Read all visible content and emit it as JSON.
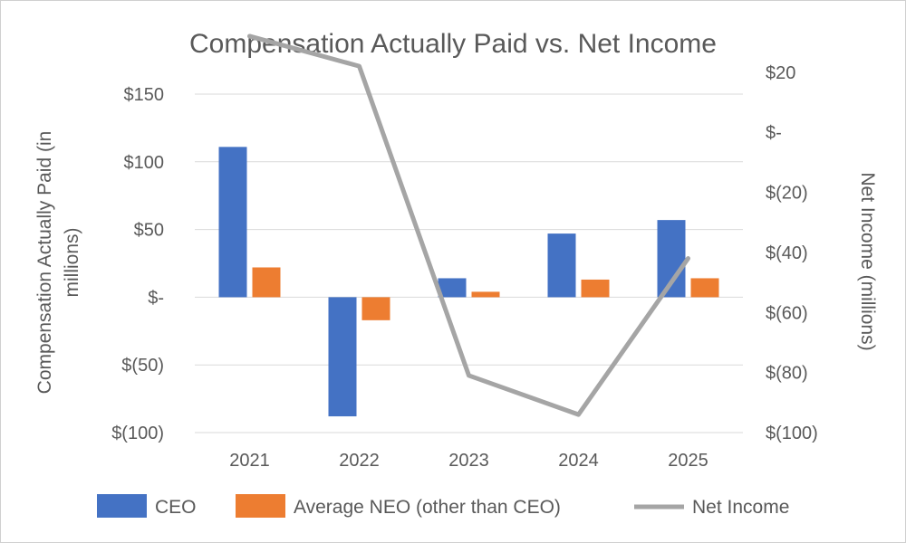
{
  "chart_data": {
    "type": "bar",
    "title": "Compensation Actually Paid vs. Net Income",
    "categories": [
      "2021",
      "2022",
      "2023",
      "2024",
      "2025"
    ],
    "ylabel_left": "Compensation Actually Paid (in millions)",
    "ylabel_right": "Net Income (millions)",
    "ylim_left": [
      -100,
      150
    ],
    "ylim_right": [
      -100,
      35
    ],
    "left_ticks": [
      {
        "value": 150,
        "label": "$150"
      },
      {
        "value": 100,
        "label": "$100"
      },
      {
        "value": 50,
        "label": "$50"
      },
      {
        "value": 0,
        "label": "$-"
      },
      {
        "value": -50,
        "label": "$(50)"
      },
      {
        "value": -100,
        "label": "$(100)"
      }
    ],
    "right_ticks": [
      {
        "value": 20,
        "label": "$20"
      },
      {
        "value": 0,
        "label": "$-"
      },
      {
        "value": -20,
        "label": "$(20)"
      },
      {
        "value": -40,
        "label": "$(40)"
      },
      {
        "value": -60,
        "label": "$(60)"
      },
      {
        "value": -80,
        "label": "$(80)"
      },
      {
        "value": -100,
        "label": "$(100)"
      }
    ],
    "grid": true,
    "legend_position": "bottom",
    "series": [
      {
        "name": "CEO",
        "kind": "bar",
        "axis": "left",
        "color": "#4472C4",
        "values": [
          111,
          -88,
          14,
          47,
          57
        ]
      },
      {
        "name": "Average NEO (other than CEO)",
        "kind": "bar",
        "axis": "left",
        "color": "#ED7D31",
        "values": [
          22,
          -17,
          4,
          13,
          14
        ]
      },
      {
        "name": "Net Income",
        "kind": "line",
        "axis": "right",
        "color": "#A5A5A5",
        "values": [
          32,
          22,
          -81,
          -94,
          -42
        ]
      }
    ]
  }
}
